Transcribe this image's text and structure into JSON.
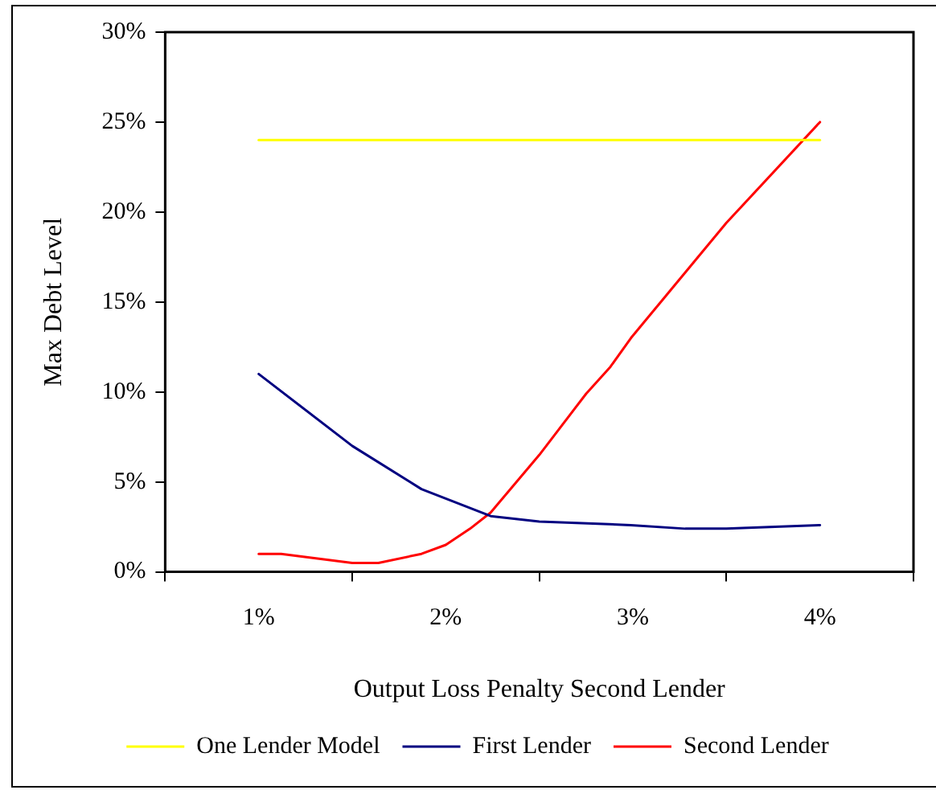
{
  "chart_data": {
    "type": "line",
    "xlabel": "Output Loss Penalty Second Lender",
    "ylabel": "Max Debt Level",
    "xlim": [
      0.5,
      4.5
    ],
    "xticks": [
      {
        "value": 0.5,
        "label": null
      },
      {
        "value": 1,
        "label": "1%"
      },
      {
        "value": 1.5,
        "label": null
      },
      {
        "value": 2,
        "label": "2%"
      },
      {
        "value": 2.5,
        "label": null
      },
      {
        "value": 3,
        "label": "3%"
      },
      {
        "value": 3.5,
        "label": null
      },
      {
        "value": 4,
        "label": "4%"
      },
      {
        "value": 4.5,
        "label": null
      }
    ],
    "ylim": [
      0,
      30
    ],
    "yticks": [
      {
        "value": 0,
        "label": "0%"
      },
      {
        "value": 5,
        "label": "5%"
      },
      {
        "value": 10,
        "label": "10%"
      },
      {
        "value": 15,
        "label": "15%"
      },
      {
        "value": 20,
        "label": "20%"
      },
      {
        "value": 25,
        "label": "25%"
      },
      {
        "value": 30,
        "label": "30%"
      }
    ],
    "grid": false,
    "legend": "bottom",
    "marker": "none",
    "line_style": "solid",
    "series": [
      {
        "name": "One Lender Model",
        "color": "#ffff00",
        "x": [
          1,
          4
        ],
        "values": [
          24,
          24
        ]
      },
      {
        "name": "First Lender",
        "color": "#000080",
        "x": [
          1,
          1.5,
          1.87,
          2.24,
          2.5,
          2.99,
          3.28,
          3.5,
          4
        ],
        "values": [
          11,
          7,
          4.6,
          3.1,
          2.8,
          2.6,
          2.4,
          2.4,
          2.6
        ]
      },
      {
        "name": "Second Lender",
        "color": "#ff0000",
        "x": [
          1,
          1.12,
          1.5,
          1.64,
          1.87,
          2,
          2.13,
          2.24,
          2.5,
          2.75,
          2.88,
          2.99,
          3.5,
          4
        ],
        "values": [
          1,
          1,
          0.5,
          0.5,
          1,
          1.5,
          2.4,
          3.3,
          6.5,
          9.9,
          11.4,
          13,
          19.4,
          25
        ]
      }
    ]
  }
}
